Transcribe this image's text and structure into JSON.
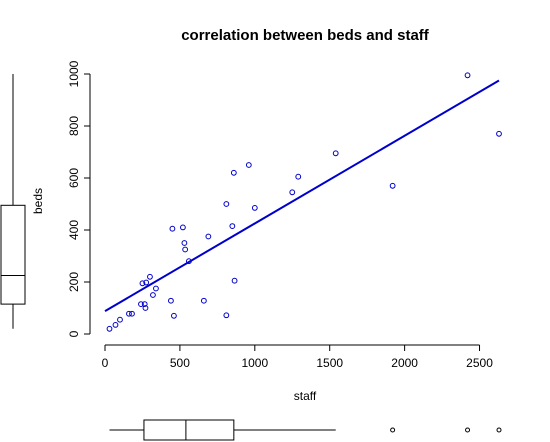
{
  "chart_data": {
    "type": "scatter",
    "title": "correlation between beds and staff",
    "xlabel": "staff",
    "ylabel": "beds",
    "xlim": [
      0,
      2630
    ],
    "ylim": [
      0,
      1000
    ],
    "x_ticks": [
      0,
      500,
      1000,
      1500,
      2000,
      2500
    ],
    "y_ticks": [
      0,
      200,
      400,
      600,
      800,
      1000
    ],
    "points": [
      {
        "x": 30,
        "y": 20
      },
      {
        "x": 70,
        "y": 35
      },
      {
        "x": 100,
        "y": 55
      },
      {
        "x": 160,
        "y": 78
      },
      {
        "x": 180,
        "y": 78
      },
      {
        "x": 240,
        "y": 115
      },
      {
        "x": 250,
        "y": 195
      },
      {
        "x": 265,
        "y": 115
      },
      {
        "x": 275,
        "y": 198
      },
      {
        "x": 270,
        "y": 100
      },
      {
        "x": 300,
        "y": 220
      },
      {
        "x": 320,
        "y": 150
      },
      {
        "x": 340,
        "y": 175
      },
      {
        "x": 440,
        "y": 128
      },
      {
        "x": 450,
        "y": 405
      },
      {
        "x": 460,
        "y": 70
      },
      {
        "x": 520,
        "y": 410
      },
      {
        "x": 530,
        "y": 350
      },
      {
        "x": 535,
        "y": 325
      },
      {
        "x": 560,
        "y": 280
      },
      {
        "x": 660,
        "y": 128
      },
      {
        "x": 690,
        "y": 375
      },
      {
        "x": 810,
        "y": 500
      },
      {
        "x": 810,
        "y": 72
      },
      {
        "x": 850,
        "y": 415
      },
      {
        "x": 860,
        "y": 620
      },
      {
        "x": 865,
        "y": 205
      },
      {
        "x": 960,
        "y": 650
      },
      {
        "x": 1000,
        "y": 485
      },
      {
        "x": 1250,
        "y": 545
      },
      {
        "x": 1290,
        "y": 605
      },
      {
        "x": 1540,
        "y": 695
      },
      {
        "x": 1920,
        "y": 570
      },
      {
        "x": 2420,
        "y": 995
      },
      {
        "x": 2630,
        "y": 770
      }
    ],
    "regression_line": {
      "x": [
        0,
        2630
      ],
      "y": [
        88,
        975
      ]
    },
    "boxplot_x": {
      "whisker_low": 30,
      "q1": 260,
      "median": 540,
      "q3": 860,
      "whisker_high": 1540,
      "outliers": [
        1920,
        2420,
        2630
      ]
    },
    "boxplot_y": {
      "whisker_low": 20,
      "q1": 115,
      "median": 225,
      "q3": 495,
      "whisker_high": 1000,
      "outliers": []
    }
  }
}
